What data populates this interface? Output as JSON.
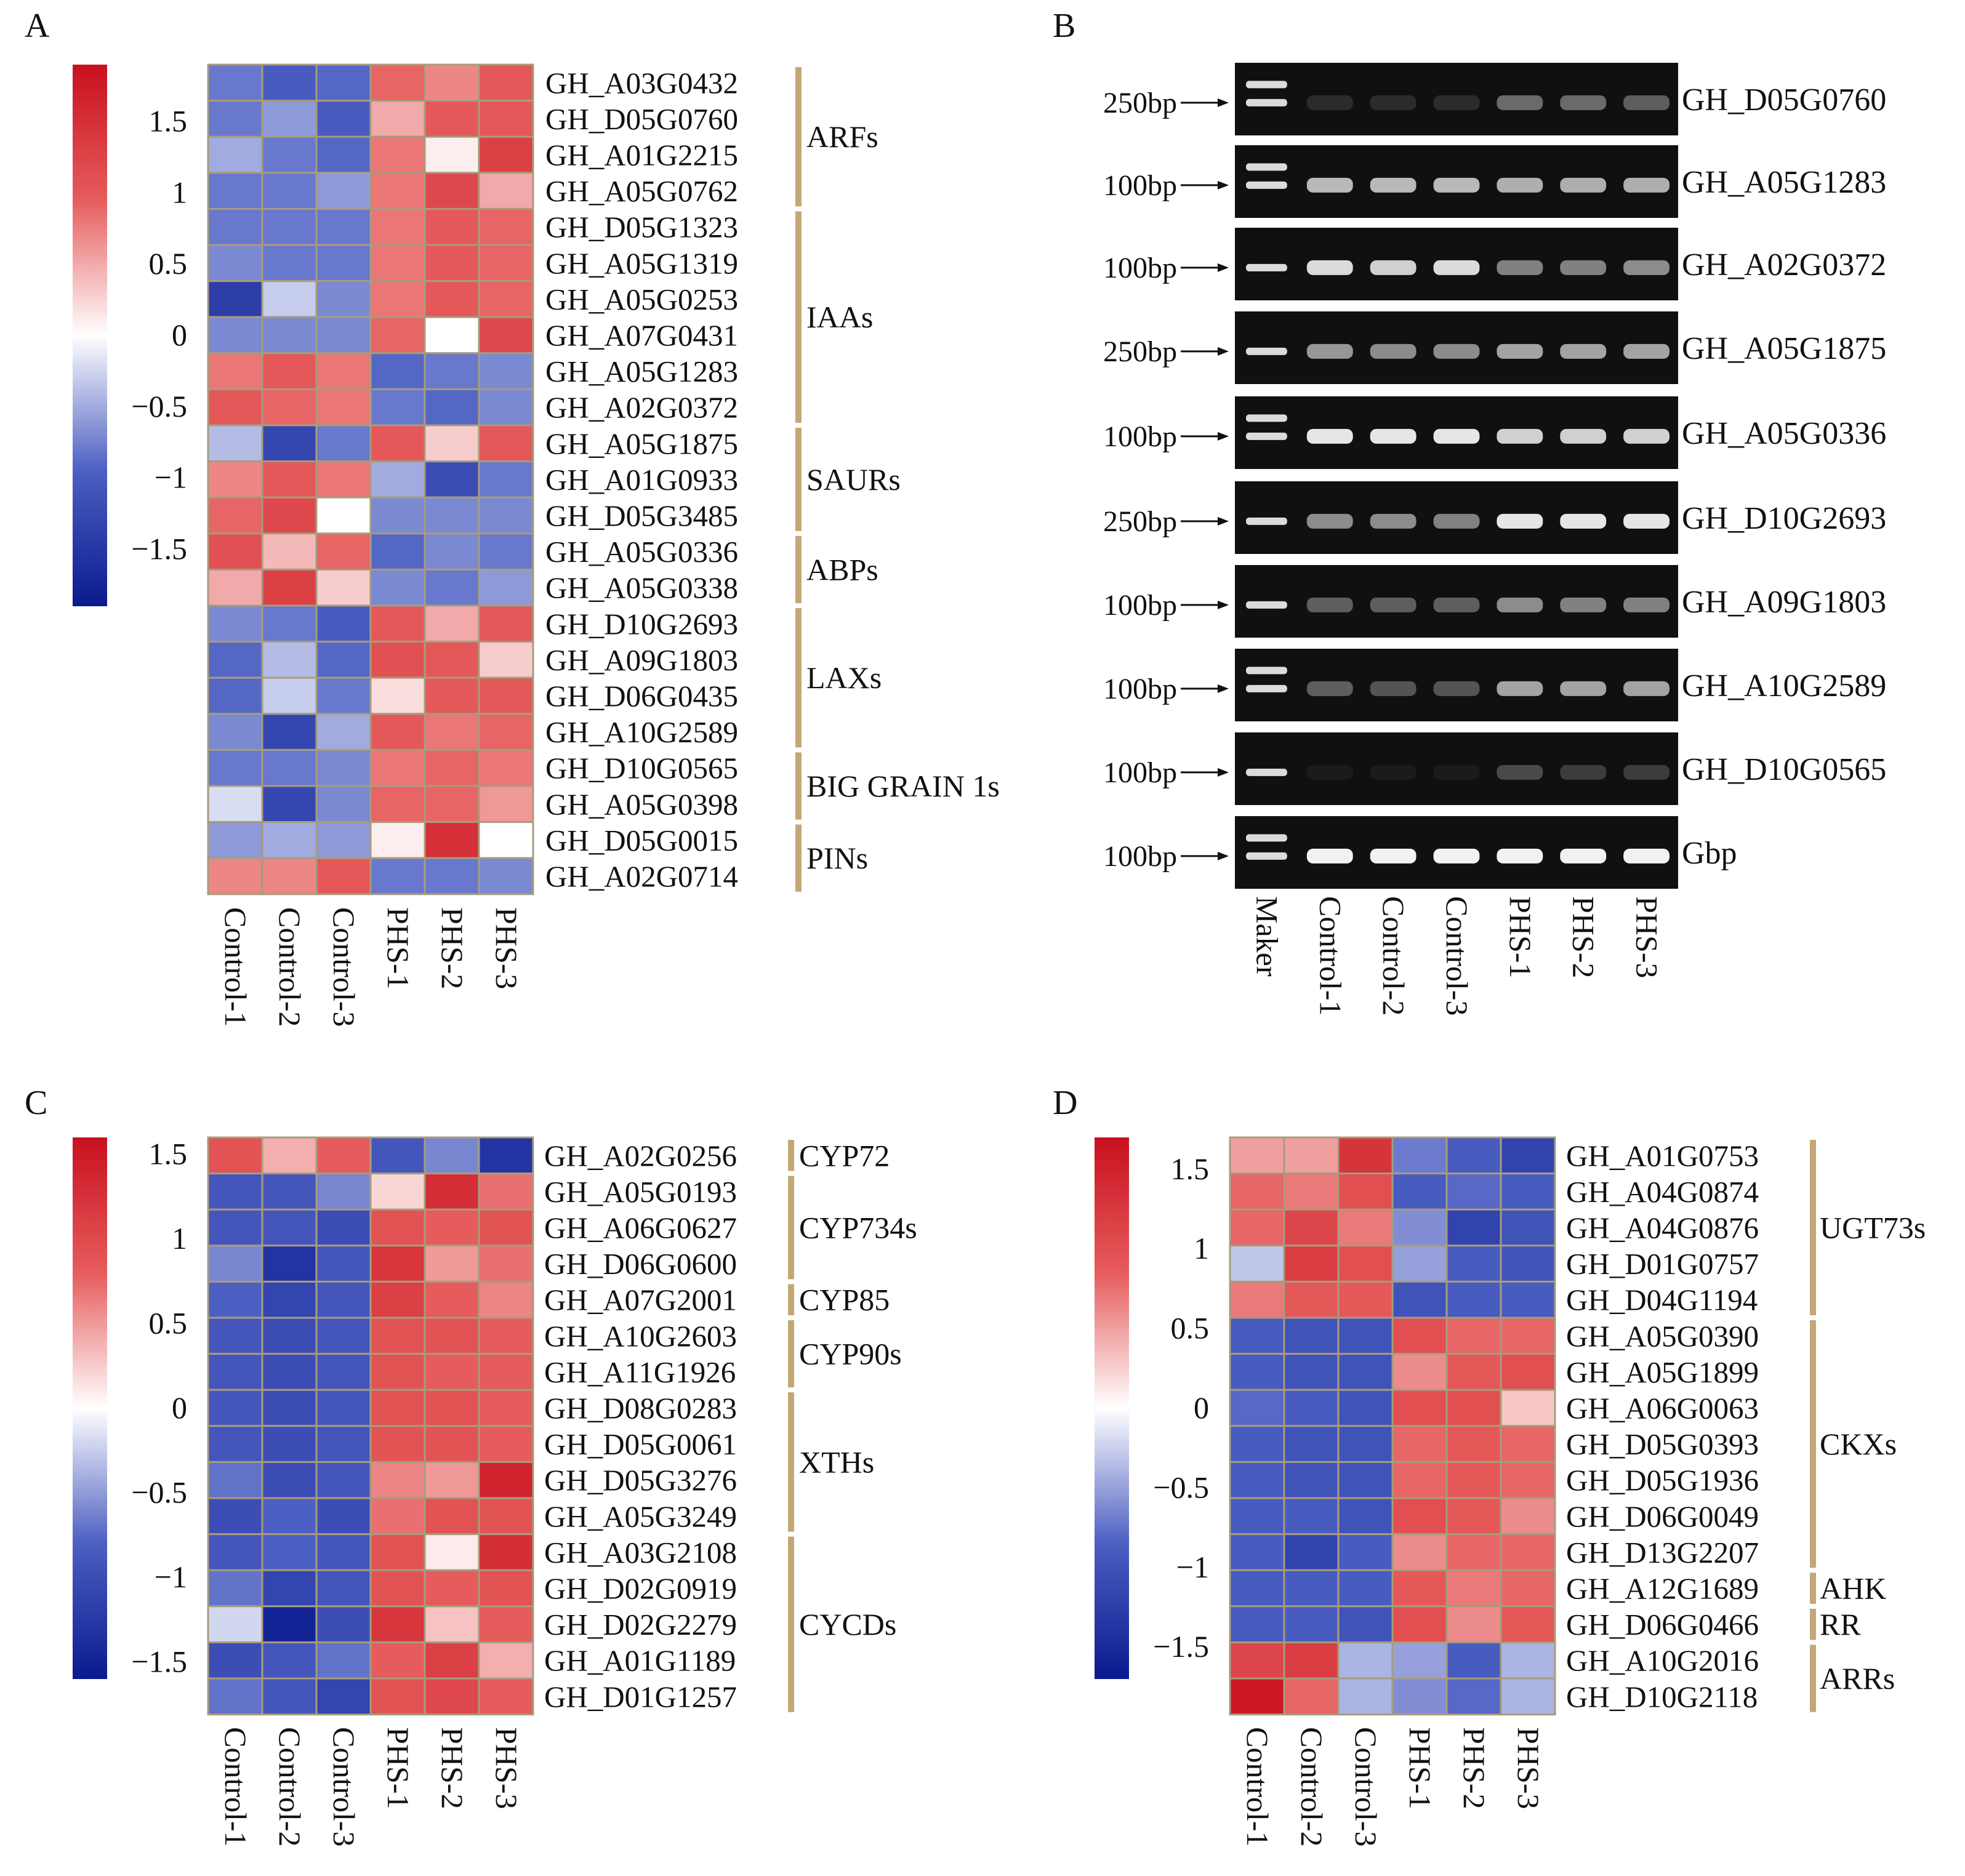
{
  "chart_data": [
    {
      "panel": "A",
      "type": "heatmap",
      "colorbar": {
        "ticks": [
          "1.5",
          "1",
          "0.5",
          "0",
          "−0.5",
          "−1",
          "−1.5"
        ],
        "tick_values": [
          1.5,
          1,
          0.5,
          0,
          -0.5,
          -1,
          -1.5
        ],
        "range": [
          -1.9,
          1.9
        ]
      },
      "columns": [
        "Control-1",
        "Control-2",
        "Control-3",
        "PHS-1",
        "PHS-2",
        "PHS-3"
      ],
      "rows": [
        "GH_A03G0432",
        "GH_D05G0760",
        "GH_A01G2215",
        "GH_A05G0762",
        "GH_D05G1323",
        "GH_A05G1319",
        "GH_A05G0253",
        "GH_A07G0431",
        "GH_A05G1283",
        "GH_A02G0372",
        "GH_A05G1875",
        "GH_A01G0933",
        "GH_D05G3485",
        "GH_A05G0336",
        "GH_A05G0338",
        "GH_D10G2693",
        "GH_A09G1803",
        "GH_D06G0435",
        "GH_A10G2589",
        "GH_D10G0565",
        "GH_A05G0398",
        "GH_D05G0015",
        "GH_A02G0714"
      ],
      "values": [
        [
          -0.8,
          -1.0,
          -0.9,
          0.9,
          0.7,
          1.0
        ],
        [
          -0.8,
          -0.6,
          -1.0,
          0.5,
          1.0,
          1.0
        ],
        [
          -0.5,
          -0.8,
          -0.9,
          0.8,
          0.1,
          1.3
        ],
        [
          -0.8,
          -0.8,
          -0.6,
          0.8,
          1.2,
          0.5
        ],
        [
          -0.8,
          -0.8,
          -0.8,
          0.8,
          1.0,
          0.9
        ],
        [
          -0.7,
          -0.8,
          -0.8,
          0.8,
          1.0,
          0.9
        ],
        [
          -1.4,
          -0.3,
          -0.7,
          0.8,
          1.0,
          0.9
        ],
        [
          -0.7,
          -0.7,
          -0.7,
          0.9,
          0.0,
          1.2
        ],
        [
          0.8,
          1.0,
          0.8,
          -0.9,
          -0.8,
          -0.7
        ],
        [
          1.0,
          0.9,
          0.8,
          -0.8,
          -0.9,
          -0.7
        ],
        [
          -0.4,
          -1.3,
          -0.8,
          1.0,
          0.3,
          1.0
        ],
        [
          0.7,
          1.0,
          0.8,
          -0.5,
          -1.2,
          -0.8
        ],
        [
          0.9,
          1.2,
          0.0,
          -0.7,
          -0.7,
          -0.7
        ],
        [
          1.1,
          0.4,
          0.9,
          -0.9,
          -0.7,
          -0.8
        ],
        [
          0.5,
          1.3,
          0.3,
          -0.7,
          -0.8,
          -0.6
        ],
        [
          -0.7,
          -0.8,
          -1.0,
          1.0,
          0.5,
          1.0
        ],
        [
          -0.9,
          -0.4,
          -0.9,
          1.1,
          1.0,
          0.3
        ],
        [
          -0.9,
          -0.3,
          -0.8,
          0.2,
          1.0,
          1.0
        ],
        [
          -0.7,
          -1.3,
          -0.5,
          1.0,
          0.8,
          0.9
        ],
        [
          -0.8,
          -0.8,
          -0.7,
          0.8,
          0.9,
          0.8
        ],
        [
          -0.2,
          -1.3,
          -0.7,
          0.9,
          0.9,
          0.6
        ],
        [
          -0.6,
          -0.5,
          -0.6,
          0.1,
          1.5,
          0.0
        ],
        [
          0.7,
          0.7,
          1.0,
          -0.8,
          -0.8,
          -0.7
        ]
      ],
      "groups": [
        {
          "label": "ARFs",
          "start": 0,
          "end": 3
        },
        {
          "label": "IAAs",
          "start": 4,
          "end": 9
        },
        {
          "label": "SAURs",
          "start": 10,
          "end": 12
        },
        {
          "label": "ABPs",
          "start": 13,
          "end": 14
        },
        {
          "label": "LAXs",
          "start": 15,
          "end": 18
        },
        {
          "label": "BIG GRAIN 1s",
          "start": 19,
          "end": 20
        },
        {
          "label": "PINs",
          "start": 21,
          "end": 22
        }
      ]
    },
    {
      "panel": "C",
      "type": "heatmap",
      "colorbar": {
        "ticks": [
          "1.5",
          "1",
          "0.5",
          "0",
          "−0.5",
          "−1",
          "−1.5"
        ],
        "tick_values": [
          1.5,
          1,
          0.5,
          0,
          -0.5,
          -1,
          -1.5
        ],
        "range": [
          -1.6,
          1.6
        ]
      },
      "columns": [
        "Control-1",
        "Control-2",
        "Control-3",
        "PHS-1",
        "PHS-2",
        "PHS-3"
      ],
      "rows": [
        "GH_A02G0256",
        "GH_A05G0193",
        "GH_A06G0627",
        "GH_D06G0600",
        "GH_A07G2001",
        "GH_A10G2603",
        "GH_A11G1926",
        "GH_D08G0283",
        "GH_D05G0061",
        "GH_D05G3276",
        "GH_A05G3249",
        "GH_A03G2108",
        "GH_D02G0919",
        "GH_D02G2279",
        "GH_A01G1189",
        "GH_D01G1257"
      ],
      "values": [
        [
          0.9,
          0.4,
          0.8,
          -0.9,
          -0.6,
          -1.3
        ],
        [
          -0.9,
          -0.9,
          -0.6,
          0.2,
          1.3,
          0.7
        ],
        [
          -0.9,
          -0.9,
          -1.0,
          0.9,
          0.8,
          0.9
        ],
        [
          -0.6,
          -1.3,
          -0.9,
          1.2,
          0.5,
          0.7
        ],
        [
          -0.8,
          -1.1,
          -0.9,
          1.1,
          0.8,
          0.6
        ],
        [
          -0.9,
          -1.0,
          -0.9,
          0.9,
          0.9,
          0.8
        ],
        [
          -0.9,
          -1.0,
          -0.9,
          0.9,
          0.8,
          0.8
        ],
        [
          -0.9,
          -1.0,
          -0.9,
          0.9,
          0.9,
          0.8
        ],
        [
          -0.9,
          -1.0,
          -0.9,
          0.9,
          0.9,
          0.8
        ],
        [
          -0.7,
          -1.0,
          -0.9,
          0.6,
          0.5,
          1.4
        ],
        [
          -1.0,
          -0.8,
          -1.0,
          0.7,
          0.9,
          0.9
        ],
        [
          -0.9,
          -0.8,
          -0.9,
          0.9,
          0.1,
          1.3
        ],
        [
          -0.7,
          -1.1,
          -0.9,
          0.9,
          0.8,
          0.9
        ],
        [
          -0.2,
          -1.5,
          -1.0,
          1.2,
          0.3,
          0.8
        ],
        [
          -1.0,
          -0.9,
          -0.7,
          0.8,
          1.1,
          0.4
        ],
        [
          -0.7,
          -0.9,
          -1.1,
          0.9,
          1.0,
          0.8
        ]
      ],
      "groups": [
        {
          "label": "CYP72",
          "start": 0,
          "end": 0
        },
        {
          "label": "CYP734s",
          "start": 1,
          "end": 3
        },
        {
          "label": "CYP85",
          "start": 4,
          "end": 4
        },
        {
          "label": "CYP90s",
          "start": 5,
          "end": 6
        },
        {
          "label": "XTHs",
          "start": 7,
          "end": 10
        },
        {
          "label": "CYCDs",
          "start": 11,
          "end": 15
        }
      ]
    },
    {
      "panel": "D",
      "type": "heatmap",
      "colorbar": {
        "ticks": [
          "1.5",
          "1",
          "0.5",
          "0",
          "−0.5",
          "−1",
          "−1.5"
        ],
        "tick_values": [
          1.5,
          1,
          0.5,
          0,
          -0.5,
          -1,
          -1.5
        ],
        "range": [
          -1.7,
          1.7
        ]
      },
      "columns": [
        "Control-1",
        "Control-2",
        "Control-3",
        "PHS-1",
        "PHS-2",
        "PHS-3"
      ],
      "rows": [
        "GH_A01G0753",
        "GH_A04G0874",
        "GH_A04G0876",
        "GH_D01G0757",
        "GH_D04G1194",
        "GH_A05G0390",
        "GH_A05G1899",
        "GH_A06G0063",
        "GH_D05G0393",
        "GH_D05G1936",
        "GH_D06G0049",
        "GH_D13G2207",
        "GH_A12G1689",
        "GH_D06G0466",
        "GH_A10G2016",
        "GH_D10G2118"
      ],
      "values": [
        [
          0.5,
          0.5,
          1.3,
          -0.7,
          -0.9,
          -1.2
        ],
        [
          0.8,
          0.7,
          1.0,
          -0.9,
          -0.8,
          -0.9
        ],
        [
          0.8,
          1.1,
          0.7,
          -0.6,
          -1.2,
          -1.0
        ],
        [
          -0.3,
          1.2,
          1.0,
          -0.5,
          -0.9,
          -1.0
        ],
        [
          0.7,
          0.9,
          0.9,
          -1.0,
          -0.9,
          -0.9
        ],
        [
          -0.9,
          -1.0,
          -1.0,
          1.0,
          0.8,
          0.8
        ],
        [
          -0.9,
          -1.0,
          -1.0,
          0.6,
          0.9,
          1.0
        ],
        [
          -0.8,
          -0.9,
          -1.0,
          1.0,
          1.0,
          0.3
        ],
        [
          -0.9,
          -1.0,
          -1.0,
          0.8,
          0.9,
          0.8
        ],
        [
          -0.9,
          -1.0,
          -1.0,
          0.8,
          0.9,
          0.8
        ],
        [
          -0.9,
          -0.9,
          -1.0,
          1.0,
          0.9,
          0.6
        ],
        [
          -0.9,
          -1.2,
          -0.9,
          0.6,
          0.8,
          0.8
        ],
        [
          -0.9,
          -0.9,
          -0.9,
          0.9,
          0.7,
          0.8
        ],
        [
          -0.9,
          -0.9,
          -1.0,
          1.0,
          0.6,
          0.9
        ],
        [
          1.1,
          1.2,
          -0.4,
          -0.5,
          -0.9,
          -0.4
        ],
        [
          1.6,
          0.8,
          -0.4,
          -0.6,
          -0.8,
          -0.4
        ]
      ],
      "groups": [
        {
          "label": "UGT73s",
          "start": 0,
          "end": 4
        },
        {
          "label": "CKXs",
          "start": 5,
          "end": 11
        },
        {
          "label": "AHK",
          "start": 12,
          "end": 12
        },
        {
          "label": "RR",
          "start": 13,
          "end": 13
        },
        {
          "label": "ARRs",
          "start": 14,
          "end": 15
        }
      ]
    },
    {
      "panel": "B",
      "type": "gel",
      "lanes": [
        "Maker",
        "Control-1",
        "Control-2",
        "Control-3",
        "PHS-1",
        "PHS-2",
        "PHS-3"
      ],
      "strips": [
        {
          "gene": "GH_D05G0760",
          "marker": "250bp",
          "ladder": [
            0.3,
            0.55
          ],
          "intensities": [
            0.12,
            0.12,
            0.12,
            0.4,
            0.4,
            0.35
          ]
        },
        {
          "gene": "GH_A05G1283",
          "marker": "100bp",
          "ladder": [
            0.3,
            0.55
          ],
          "intensities": [
            0.75,
            0.75,
            0.75,
            0.7,
            0.7,
            0.7
          ]
        },
        {
          "gene": "GH_A02G0372",
          "marker": "100bp",
          "ladder": [
            0.55
          ],
          "intensities": [
            0.9,
            0.85,
            0.9,
            0.5,
            0.5,
            0.55
          ]
        },
        {
          "gene": "GH_A05G1875",
          "marker": "250bp",
          "ladder": [
            0.55
          ],
          "intensities": [
            0.6,
            0.55,
            0.55,
            0.65,
            0.65,
            0.65
          ]
        },
        {
          "gene": "GH_A05G0336",
          "marker": "100bp",
          "ladder": [
            0.3,
            0.55
          ],
          "intensities": [
            0.95,
            0.95,
            0.95,
            0.85,
            0.85,
            0.85
          ]
        },
        {
          "gene": "GH_D10G2693",
          "marker": "250bp",
          "ladder": [
            0.55
          ],
          "intensities": [
            0.55,
            0.55,
            0.5,
            0.95,
            0.95,
            0.95
          ]
        },
        {
          "gene": "GH_A09G1803",
          "marker": "100bp",
          "ladder": [
            0.55
          ],
          "intensities": [
            0.35,
            0.35,
            0.35,
            0.55,
            0.5,
            0.5
          ]
        },
        {
          "gene": "GH_A10G2589",
          "marker": "100bp",
          "ladder": [
            0.3,
            0.55
          ],
          "intensities": [
            0.35,
            0.3,
            0.3,
            0.65,
            0.65,
            0.65
          ]
        },
        {
          "gene": "GH_D10G0565",
          "marker": "100bp",
          "ladder": [
            0.55
          ],
          "intensities": [
            0.05,
            0.05,
            0.05,
            0.25,
            0.2,
            0.2
          ]
        },
        {
          "gene": "Gbp",
          "marker": "100bp",
          "ladder": [
            0.3,
            0.55
          ],
          "intensities": [
            1.0,
            1.0,
            1.0,
            1.0,
            1.0,
            1.0
          ]
        }
      ]
    }
  ],
  "colors": {
    "low": "#0a1a8e",
    "mid_low": "#4c5fc2",
    "zero": "#ffffff",
    "mid_high": "#e65c5c",
    "high": "#c8101e",
    "grid": "#a79c7e",
    "bracket": "#c4a777",
    "gel_background": "#101010",
    "gel_band": "#f2f2f2"
  }
}
